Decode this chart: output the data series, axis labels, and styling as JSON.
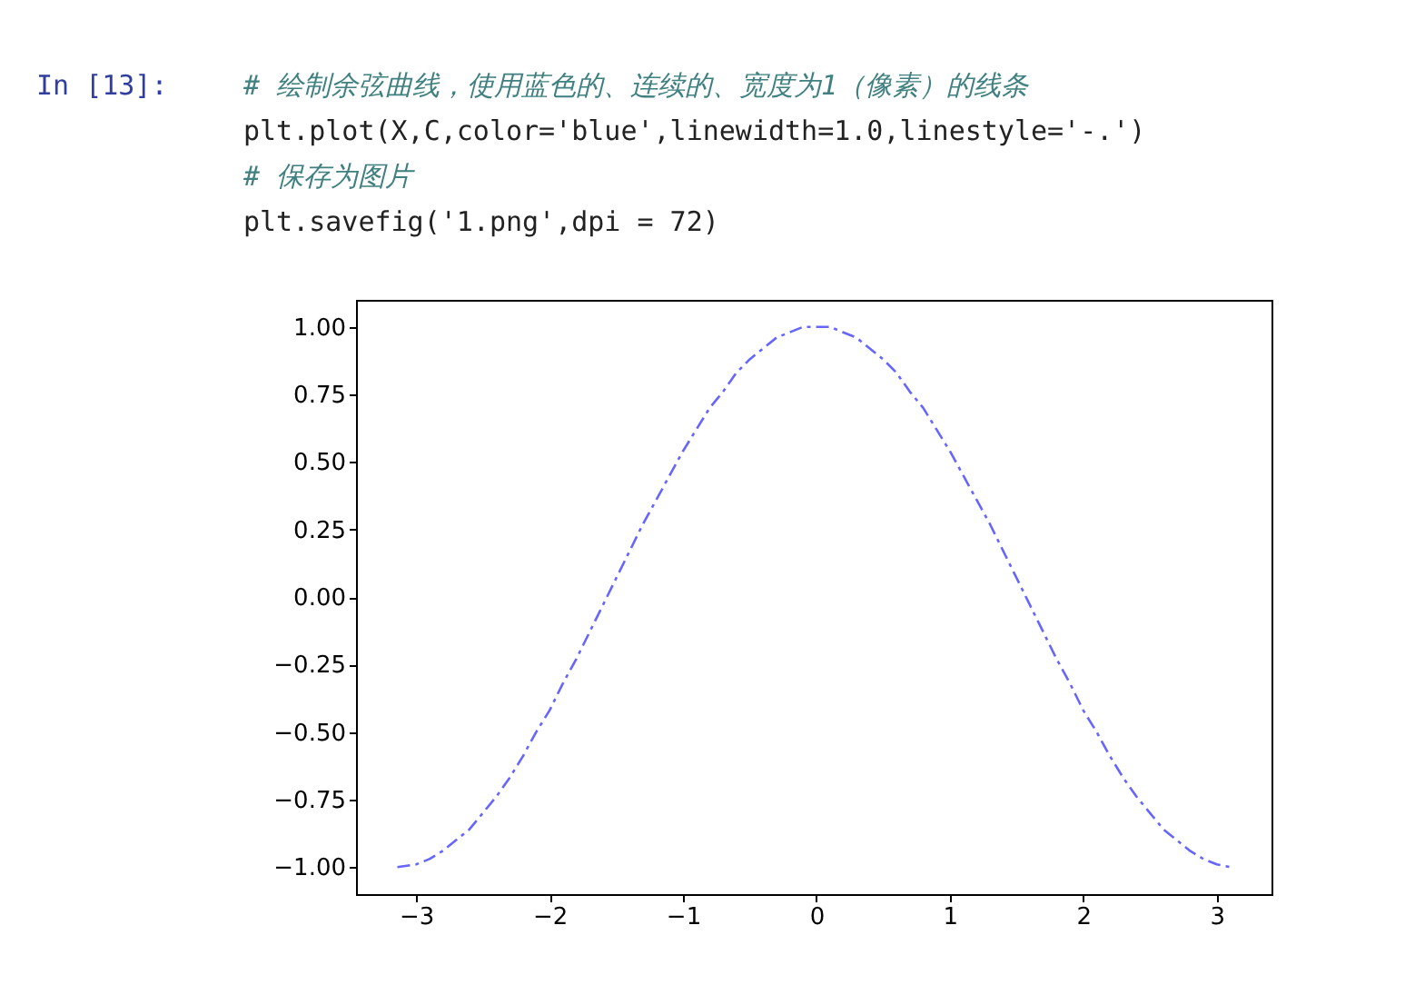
{
  "chart_data": {
    "type": "line",
    "annotations": [
      "In  [13]:",
      "# 绘制余弦曲线，使用蓝色的、连续的、宽度为1（像素）的线条",
      "plt.plot(X,C,color='blue',linewidth=1.0,linestyle='-.')",
      "# 保存为图片",
      "plt.savefig('1.png',dpi = 72)"
    ],
    "x": [
      -3.14,
      -3.0,
      -2.9,
      -2.8,
      -2.7,
      -2.6,
      -2.5,
      -2.4,
      -2.3,
      -2.2,
      -2.1,
      -2.0,
      -1.9,
      -1.8,
      -1.7,
      -1.6,
      -1.5,
      -1.4,
      -1.3,
      -1.2,
      -1.1,
      -1.0,
      -0.9,
      -0.8,
      -0.7,
      -0.6,
      -0.5,
      -0.4,
      -0.3,
      -0.2,
      -0.1,
      0.0,
      0.1,
      0.2,
      0.3,
      0.4,
      0.5,
      0.6,
      0.7,
      0.8,
      0.9,
      1.0,
      1.1,
      1.2,
      1.3,
      1.4,
      1.5,
      1.6,
      1.7,
      1.8,
      1.9,
      2.0,
      2.1,
      2.2,
      2.3,
      2.4,
      2.5,
      2.6,
      2.7,
      2.8,
      2.9,
      3.0,
      3.1
    ],
    "series": [
      {
        "color": "#6666ff",
        "values": [
          -1.0,
          -0.99,
          -0.97,
          -0.94,
          -0.9,
          -0.86,
          -0.8,
          -0.74,
          -0.67,
          -0.59,
          -0.5,
          -0.42,
          -0.32,
          -0.23,
          -0.13,
          -0.03,
          0.07,
          0.17,
          0.27,
          0.36,
          0.45,
          0.54,
          0.62,
          0.7,
          0.76,
          0.83,
          0.88,
          0.92,
          0.96,
          0.98,
          1.0,
          1.0,
          1.0,
          0.98,
          0.96,
          0.92,
          0.88,
          0.83,
          0.76,
          0.7,
          0.62,
          0.54,
          0.45,
          0.36,
          0.27,
          0.17,
          0.07,
          -0.03,
          -0.13,
          -0.23,
          -0.32,
          -0.42,
          -0.5,
          -0.59,
          -0.67,
          -0.74,
          -0.8,
          -0.86,
          -0.9,
          -0.94,
          -0.97,
          -0.99,
          -1.0
        ]
      }
    ],
    "xlim": [
      -3.45,
      3.41
    ],
    "ylim": [
      -1.1,
      1.1
    ],
    "xticks": [
      {
        "value": -3,
        "label": "−3"
      },
      {
        "value": -2,
        "label": "−2"
      },
      {
        "value": -1,
        "label": "−1"
      },
      0,
      1,
      2,
      3
    ],
    "yticks": [
      {
        "value": -1.0,
        "label": "−1.00"
      },
      {
        "value": -0.75,
        "label": "−0.75"
      },
      {
        "value": -0.5,
        "label": "−0.50"
      },
      {
        "value": -0.25,
        "label": "−0.25"
      },
      {
        "value": 0,
        "label": "0.00"
      },
      {
        "value": 0.25,
        "label": "0.25"
      },
      {
        "value": 0.5,
        "label": "0.50"
      },
      {
        "value": 0.75,
        "label": "0.75"
      },
      {
        "value": 1.0,
        "label": "1.00"
      }
    ],
    "grid": false,
    "marker": "none",
    "line_style": "dashed"
  }
}
